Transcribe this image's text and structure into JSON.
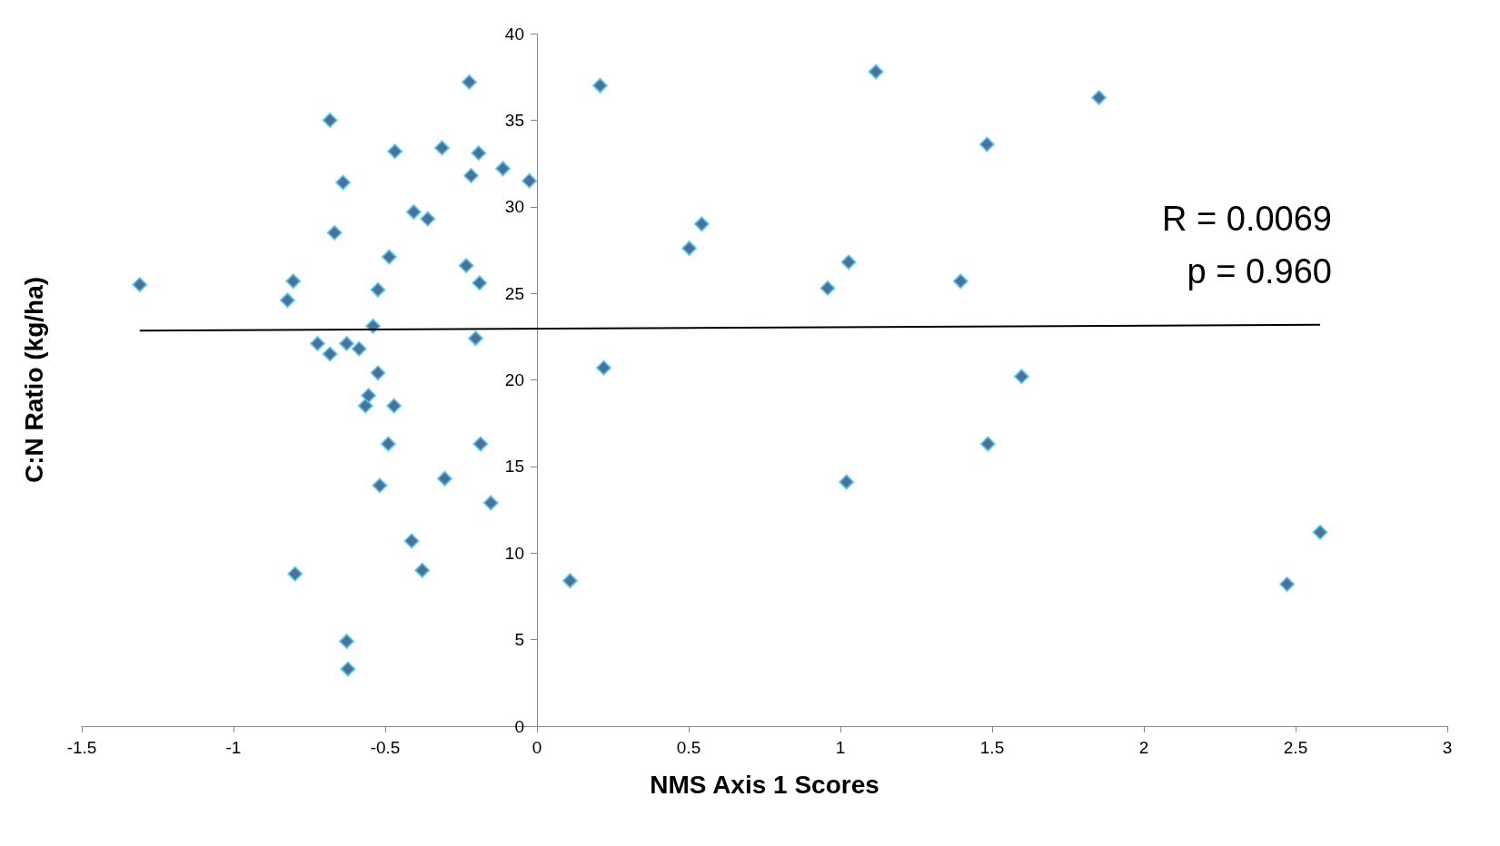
{
  "chart_data": {
    "type": "scatter",
    "xlabel": "NMS Axis 1 Scores",
    "ylabel": "C:N Ratio (kg/ha)",
    "xlim": [
      -1.5,
      3
    ],
    "xticks": [
      -1.5,
      -1,
      -0.5,
      0,
      0.5,
      1,
      1.5,
      2,
      2.5,
      3
    ],
    "ylim": [
      0,
      40
    ],
    "yticks": [
      0,
      5,
      10,
      15,
      20,
      25,
      30,
      35,
      40
    ],
    "marker": "diamond",
    "annotations": [
      "R = 0.0069",
      "p = 0.960"
    ],
    "series": [
      {
        "color": "#1f4e79",
        "x": [
          -1.309,
          -0.822,
          -0.803,
          -0.797,
          -0.723,
          -0.682,
          -0.682,
          -0.667,
          -0.639,
          -0.627,
          -0.627,
          -0.623,
          -0.586,
          -0.565,
          -0.555,
          -0.54,
          -0.524,
          -0.524,
          -0.518,
          -0.49,
          -0.487,
          -0.471,
          -0.468,
          -0.413,
          -0.406,
          -0.378,
          -0.36,
          -0.313,
          -0.304,
          -0.233,
          -0.223,
          -0.217,
          -0.202,
          -0.192,
          -0.189,
          -0.186,
          -0.152,
          -0.112,
          -0.025,
          0.109,
          0.208,
          0.22,
          0.502,
          0.543,
          0.958,
          1.02,
          1.027,
          1.117,
          1.396,
          1.483,
          1.486,
          1.597,
          1.852,
          2.472,
          2.581
        ],
        "values": [
          25.5,
          24.6,
          25.7,
          8.8,
          22.1,
          35.0,
          21.5,
          28.5,
          31.4,
          22.1,
          4.9,
          3.3,
          21.8,
          18.5,
          19.1,
          23.1,
          25.2,
          20.4,
          13.9,
          16.3,
          27.1,
          18.5,
          33.2,
          10.7,
          29.7,
          9.0,
          29.3,
          33.4,
          14.3,
          26.6,
          37.2,
          31.8,
          22.4,
          33.1,
          25.6,
          16.3,
          12.9,
          32.2,
          31.5,
          8.4,
          37.0,
          20.7,
          27.6,
          29.0,
          25.3,
          14.1,
          26.8,
          37.8,
          25.7,
          33.6,
          16.3,
          20.2,
          36.3,
          8.2,
          11.2
        ]
      },
      {
        "type": "line",
        "color": "#000000",
        "marker": "none",
        "x": [
          -1.309,
          2.581
        ],
        "values": [
          22.85,
          23.18
        ]
      }
    ]
  }
}
